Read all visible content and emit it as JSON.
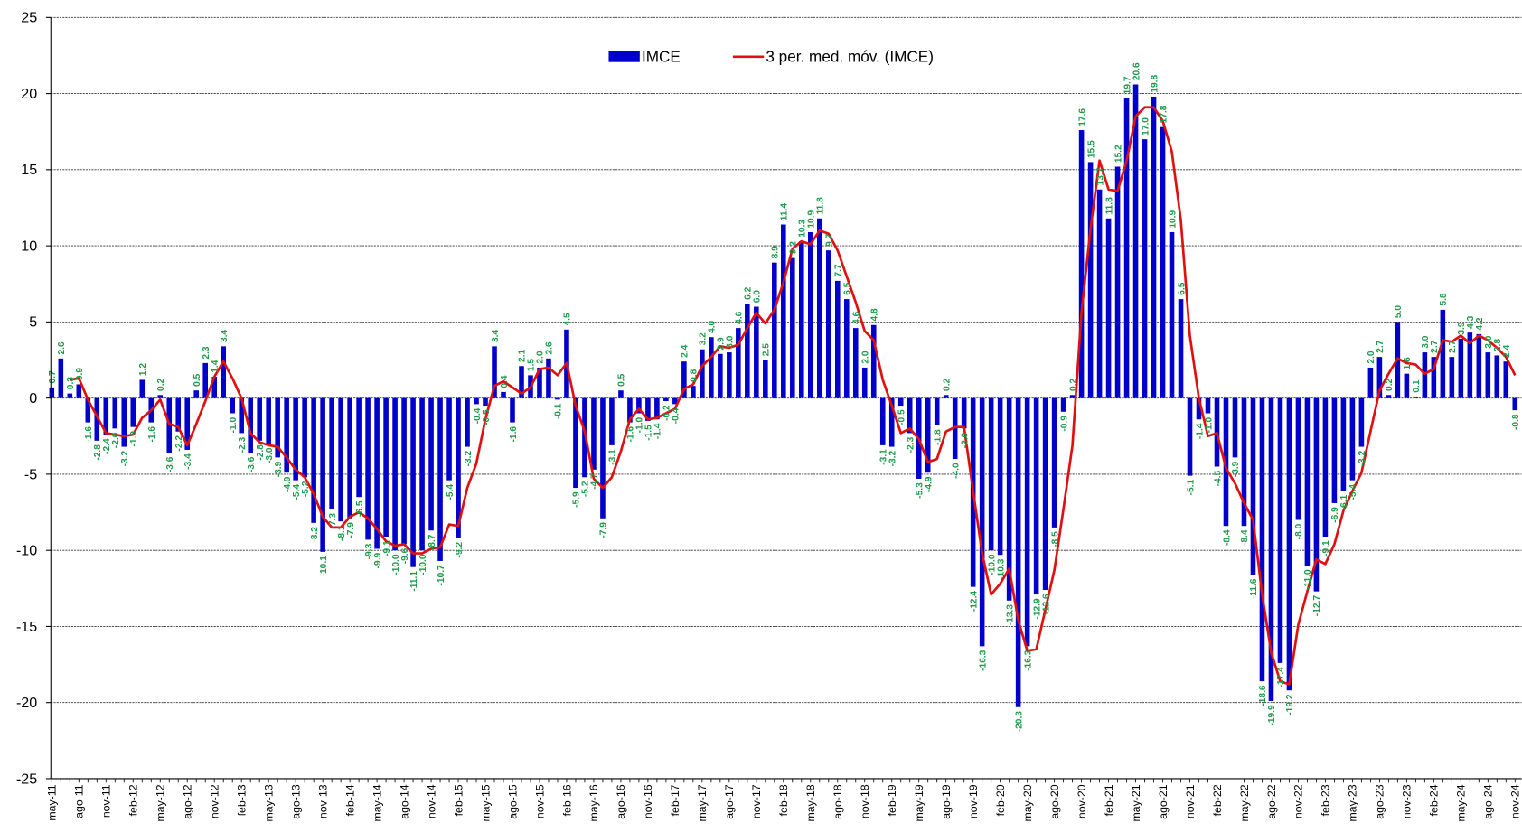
{
  "chart_data": {
    "type": "bar",
    "categories": [
      "may-11",
      null,
      null,
      "ago-11",
      null,
      null,
      "nov-11",
      null,
      null,
      "feb-12",
      null,
      null,
      "may-12",
      null,
      null,
      "ago-12",
      null,
      null,
      "nov-12",
      null,
      null,
      "feb-13",
      null,
      null,
      "may-13",
      null,
      null,
      "ago-13",
      null,
      null,
      "nov-13",
      null,
      null,
      "feb-14",
      null,
      null,
      "may-14",
      null,
      null,
      "ago-14",
      null,
      null,
      "nov-14",
      null,
      null,
      "feb-15",
      null,
      null,
      "may-15",
      null,
      null,
      "ago-15",
      null,
      null,
      "nov-15",
      null,
      null,
      "feb-16",
      null,
      null,
      "may-16",
      null,
      null,
      "ago-16",
      null,
      null,
      "nov-16",
      null,
      null,
      "feb-17",
      null,
      null,
      "may-17",
      null,
      null,
      "ago-17",
      null,
      null,
      "nov-17",
      null,
      null,
      "feb-18",
      null,
      null,
      "may-18",
      null,
      null,
      "ago-18",
      null,
      null,
      "nov-18",
      null,
      null,
      "feb-19",
      null,
      null,
      "may-19",
      null,
      null,
      "ago-19",
      null,
      null,
      "nov-19",
      null,
      null,
      "feb-20",
      null,
      null,
      "may-20",
      null,
      null,
      "ago-20",
      null,
      null,
      "nov-20",
      null,
      null,
      "feb-21",
      null,
      null,
      "may-21",
      null,
      null,
      "ago-21",
      null,
      null,
      "nov-21",
      null,
      null,
      "feb-22",
      null,
      null,
      "may-22",
      null,
      null,
      "ago-22",
      null,
      null,
      "nov-22",
      null,
      null,
      "feb-23",
      null,
      null,
      "may-23",
      null,
      null,
      "ago-23",
      null,
      null,
      "nov-23",
      null,
      null,
      "feb-24",
      null,
      null,
      "may-24",
      null,
      null,
      "ago-24",
      null,
      null,
      "nov-24"
    ],
    "series": [
      {
        "name": "IMCE",
        "color": "#0000cc",
        "type": "bar",
        "label_color": "#1f9a4a",
        "values": [
          0.7,
          2.6,
          0.3,
          0.9,
          -1.6,
          -2.8,
          -2.4,
          -2.0,
          -3.2,
          -1.9,
          1.2,
          -1.6,
          0.2,
          -3.6,
          -2.2,
          -3.4,
          0.5,
          2.3,
          1.4,
          3.4,
          -1.0,
          -2.3,
          -3.6,
          -2.8,
          -3.0,
          -3.9,
          -4.9,
          -5.4,
          -5.2,
          -8.2,
          -10.1,
          -7.3,
          -8.1,
          -7.9,
          -6.5,
          -9.3,
          -9.9,
          -9.1,
          -10.0,
          -9.6,
          -11.1,
          -10.0,
          -8.7,
          -10.7,
          -5.4,
          -9.2,
          -3.2,
          -0.4,
          -0.5,
          3.4,
          0.4,
          -1.6,
          2.1,
          1.5,
          2.0,
          2.6,
          -0.1,
          4.5,
          -5.9,
          -5.2,
          -4.7,
          -7.9,
          -3.1,
          0.5,
          -1.6,
          -1.0,
          -1.5,
          -1.4,
          -0.2,
          -0.4,
          2.4,
          0.8,
          3.2,
          4.0,
          2.9,
          3.0,
          4.6,
          6.2,
          6.0,
          2.5,
          8.9,
          11.4,
          9.2,
          10.3,
          10.9,
          11.8,
          9.7,
          7.7,
          6.5,
          4.6,
          2.0,
          4.8,
          -3.1,
          -3.2,
          -0.5,
          -2.3,
          -5.3,
          -4.9,
          -1.8,
          0.2,
          -4.0,
          -2.0,
          -12.4,
          -16.3,
          -10.0,
          -10.3,
          -13.3,
          -20.3,
          -16.3,
          -12.9,
          -12.6,
          -8.5,
          -0.9,
          0.2,
          17.6,
          15.5,
          13.7,
          11.8,
          15.2,
          19.7,
          20.6,
          17.0,
          19.8,
          17.8,
          10.9,
          6.5,
          -5.1,
          -1.4,
          -1.0,
          -4.5,
          -8.4,
          -3.9,
          -8.4,
          -11.6,
          -18.6,
          -19.9,
          -17.4,
          -19.2,
          -8.0,
          -11.0,
          -12.7,
          -9.1,
          -6.9,
          -6.1,
          -5.4,
          -3.2,
          2.0,
          2.7,
          0.2,
          5.0,
          1.6,
          0.1,
          3.0,
          2.7,
          5.8,
          2.7,
          3.9,
          4.3,
          4.2,
          3.0,
          2.8,
          2.4,
          -0.8
        ],
        "value_labels": [
          "0.7",
          "2.6",
          "0.3",
          "0.9",
          "-1.6",
          "-2.8",
          "-2.4",
          "-2.0",
          "-3.2",
          "-1.9",
          "1.2",
          "-1.6",
          "0.2",
          "-3.6",
          "-2.2",
          "-3.4",
          "0.5",
          "2.3",
          "1.4",
          "3.4",
          "-1.0",
          "-2.3",
          "-3.6",
          "-2.8",
          "-3.0",
          "-3.9",
          "-4.9",
          "-5.4",
          "-5.2",
          "-8.2",
          "-10.1",
          "-7.3",
          "-8.1",
          "-7.9",
          "-6.5",
          "-9.3",
          "-9.9",
          "-9.1",
          "-10.0",
          "-9.6",
          "-11.1",
          "-10.0",
          "-8.7",
          "-10.7",
          "-5.4",
          "-9.2",
          "-3.2",
          "-0.4",
          "-0.5",
          "3.4",
          "0.4",
          "-1.6",
          "2.1",
          "1.5",
          "2.0",
          "2.6",
          "-0.1",
          "4.5",
          "-5.9",
          "-5.2",
          "-4.7",
          "-7.9",
          "-3.1",
          "0.5",
          "-1.6",
          "-1.0",
          "-1.5",
          "-1.4",
          "-0.2",
          "-0.4",
          "2.4",
          "0.8",
          "3.2",
          "4.0",
          "2.9",
          "3.0",
          "4.6",
          "6.2",
          "6.0",
          "2.5",
          "8.9",
          "11.4",
          "9.2",
          "10.3",
          "10.9",
          "11.8",
          "9.7",
          "7.7",
          "6.5",
          "4.6",
          "2.0",
          "4.8",
          "-3.1",
          "-3.2",
          "-0.5",
          "-2.3",
          "-5.3",
          "-4.9",
          "-1.8",
          "0.2",
          "-4.0",
          "-2.0",
          "-12.4",
          "-16.3",
          "-10.0",
          "-10.3",
          "-13.3",
          "-20.3",
          "-16.3",
          "-12.9",
          "-12.6",
          "-8.5",
          "-0.9",
          "0.2",
          "17.6",
          "15.5",
          "13.7",
          "11.8",
          "15.2",
          "19.7",
          "20.6",
          "17.0",
          "19.8",
          "17.8",
          "10.9",
          "6.5",
          "-5.1",
          "-1.4",
          "-1.0",
          "-4.5",
          "-8.4",
          "-3.9",
          "-8.4",
          "-11.6",
          "-18.6",
          "-19.9",
          "-17.4",
          "-19.2",
          "-8.0",
          "-11.0",
          "-12.7",
          "-9.1",
          "-6.9",
          "-6.1",
          "-5.4",
          "-3.2",
          "2.0",
          "2.7",
          "0.2",
          "5.0",
          "1.6",
          "0.1",
          "3.0",
          "2.7",
          "5.8",
          "2.7",
          "3.9",
          "4.3",
          "4.2",
          "3.0",
          "2.8",
          "2.4",
          "-0.8"
        ]
      },
      {
        "name": "3 per. med. móv. (IMCE)",
        "color": "#e01010",
        "type": "line",
        "values": [
          null,
          null,
          1.2,
          1.3,
          -0.1,
          -1.2,
          -2.3,
          -2.4,
          -2.5,
          -2.4,
          -1.3,
          -0.8,
          -0.1,
          -1.7,
          -1.9,
          -3.1,
          -1.7,
          -0.2,
          1.4,
          2.4,
          1.3,
          0.0,
          -2.3,
          -2.9,
          -3.1,
          -3.2,
          -3.9,
          -4.7,
          -5.2,
          -6.3,
          -7.8,
          -8.5,
          -8.5,
          -7.8,
          -7.5,
          -7.9,
          -8.6,
          -9.4,
          -9.7,
          -9.6,
          -10.2,
          -10.2,
          -9.9,
          -9.8,
          -8.3,
          -8.4,
          -5.9,
          -4.3,
          -1.4,
          0.8,
          1.1,
          0.7,
          0.3,
          0.7,
          1.9,
          2.0,
          1.5,
          2.3,
          -0.5,
          -2.2,
          -5.3,
          -5.9,
          -5.2,
          -3.5,
          -1.4,
          -0.7,
          -1.4,
          -1.3,
          -1.0,
          -0.7,
          0.6,
          0.9,
          2.1,
          2.7,
          3.4,
          3.3,
          3.5,
          4.6,
          5.6,
          4.9,
          5.8,
          7.6,
          9.8,
          10.3,
          10.1,
          11.0,
          10.8,
          9.7,
          8.0,
          6.3,
          4.4,
          3.8,
          1.2,
          -0.5,
          -2.3,
          -2.0,
          -2.7,
          -4.2,
          -4.0,
          -2.2,
          -1.9,
          -1.9,
          -6.1,
          -10.2,
          -12.9,
          -12.2,
          -11.2,
          -14.6,
          -16.6,
          -16.5,
          -13.9,
          -11.3,
          -7.3,
          -3.1,
          5.6,
          11.1,
          15.6,
          13.7,
          13.6,
          15.6,
          18.5,
          19.1,
          19.1,
          18.2,
          16.2,
          11.7,
          4.1,
          0.0,
          -2.5,
          -2.3,
          -4.6,
          -5.6,
          -6.9,
          -8.0,
          -12.9,
          -16.7,
          -18.6,
          -18.8,
          -14.9,
          -12.7,
          -10.6,
          -10.9,
          -9.6,
          -7.4,
          -6.1,
          -4.9,
          -2.2,
          0.5,
          1.6,
          2.6,
          2.3,
          2.2,
          1.6,
          1.9,
          3.8,
          3.7,
          4.1,
          3.6,
          4.1,
          3.8,
          3.3,
          2.7,
          1.5
        ]
      }
    ],
    "ylim": [
      -25,
      25
    ],
    "yticks": [
      -25,
      -20,
      -15,
      -10,
      -5,
      0,
      5,
      10,
      15,
      20,
      25
    ],
    "grid": true,
    "legend": "top"
  }
}
